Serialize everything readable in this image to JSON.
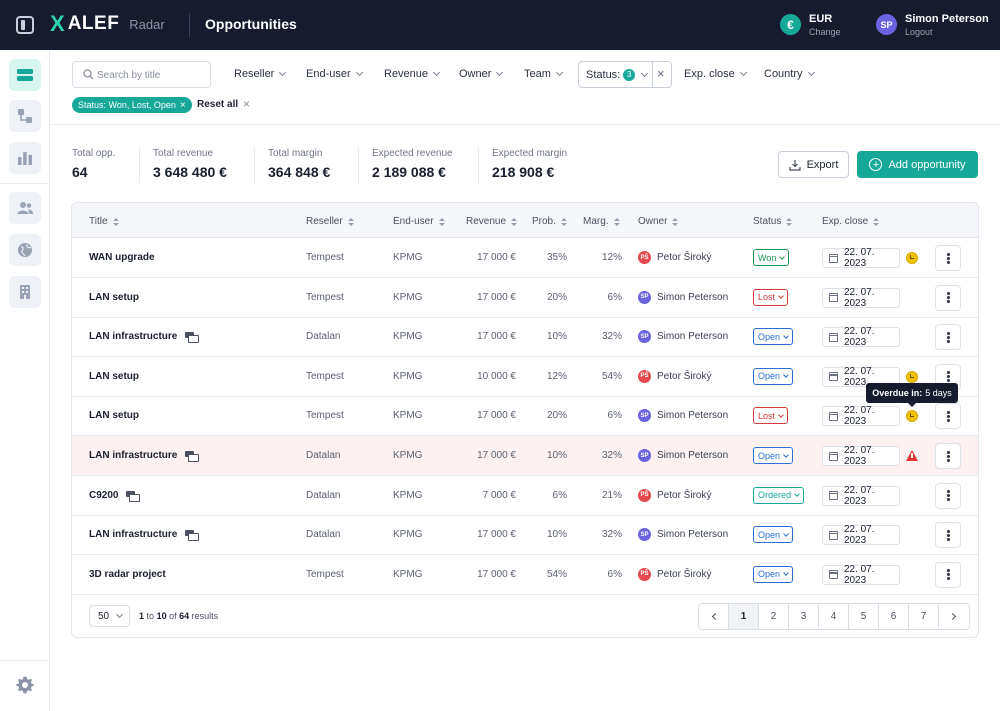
{
  "header": {
    "logo_mark": "X",
    "logo_text": "ALEF",
    "logo_sub": "Radar",
    "page_title": "Opportunities",
    "currency_symbol": "€",
    "currency_code": "EUR",
    "currency_change": "Change",
    "user_initials": "SP",
    "user_name": "Simon Peterson",
    "user_logout": "Logout"
  },
  "filters": {
    "search_placeholder": "Search by title",
    "reseller": "Reseller",
    "end_user": "End-user",
    "revenue": "Revenue",
    "owner": "Owner",
    "team": "Team",
    "status": "Status:",
    "status_count": "3",
    "status_clear": "×",
    "exp_close": "Exp. close",
    "country": "Country",
    "chip": "Status: Won, Lost, Open",
    "chip_x": "×",
    "reset_all": "Reset all",
    "reset_x": "×"
  },
  "stats": [
    {
      "label": "Total opp.",
      "value": "64"
    },
    {
      "label": "Total revenue",
      "value": "3 648 480 €"
    },
    {
      "label": "Total margin",
      "value": "364 848 €"
    },
    {
      "label": "Expected revenue",
      "value": "2 189 088 €"
    },
    {
      "label": "Expected margin",
      "value": "218 908 €"
    }
  ],
  "actions": {
    "export": "Export",
    "add_opportunity": "Add opportunity"
  },
  "table": {
    "headers": {
      "title": "Title",
      "reseller": "Reseller",
      "end_user": "End-user",
      "revenue": "Revenue",
      "prob": "Prob.",
      "marg": "Marg.",
      "owner": "Owner",
      "status": "Status",
      "exp_close": "Exp. close"
    },
    "rows": [
      {
        "title": "WAN upgrade",
        "group": false,
        "reseller": "Tempest",
        "end_user": "KPMG",
        "revenue": "17 000 €",
        "prob": "35%",
        "marg": "12%",
        "owner_initials": "PŠ",
        "owner": "Petor Široký",
        "status": "Won",
        "date": "22. 07. 2023",
        "warn": "clock"
      },
      {
        "title": "LAN setup",
        "group": false,
        "reseller": "Tempest",
        "end_user": "KPMG",
        "revenue": "17 000 €",
        "prob": "20%",
        "marg": "6%",
        "owner_initials": "SP",
        "owner": "Simon Peterson",
        "status": "Lost",
        "date": "22. 07. 2023",
        "warn": ""
      },
      {
        "title": "LAN infrastructure",
        "group": true,
        "reseller": "Datalan",
        "end_user": "KPMG",
        "revenue": "17 000 €",
        "prob": "10%",
        "marg": "32%",
        "owner_initials": "SP",
        "owner": "Simon Peterson",
        "status": "Open",
        "date": "22. 07. 2023",
        "warn": ""
      },
      {
        "title": "LAN setup",
        "group": false,
        "reseller": "Tempest",
        "end_user": "KPMG",
        "revenue": "10 000 €",
        "prob": "12%",
        "marg": "54%",
        "owner_initials": "PŠ",
        "owner": "Petor Široký",
        "status": "Open",
        "date": "22. 07. 2023",
        "warn": "clock"
      },
      {
        "title": "LAN setup",
        "group": false,
        "reseller": "Tempest",
        "end_user": "KPMG",
        "revenue": "17 000 €",
        "prob": "20%",
        "marg": "6%",
        "owner_initials": "SP",
        "owner": "Simon Peterson",
        "status": "Lost",
        "date": "22. 07. 2023",
        "warn": "clock"
      },
      {
        "title": "LAN infrastructure",
        "group": true,
        "reseller": "Datalan",
        "end_user": "KPMG",
        "revenue": "17 000 €",
        "prob": "10%",
        "marg": "32%",
        "owner_initials": "SP",
        "owner": "Simon Peterson",
        "status": "Open",
        "date": "22. 07. 2023",
        "warn": "triangle"
      },
      {
        "title": "C9200",
        "group": true,
        "reseller": "Datalan",
        "end_user": "KPMG",
        "revenue": "7 000 €",
        "prob": "6%",
        "marg": "21%",
        "owner_initials": "PŠ",
        "owner": "Petor Široký",
        "status": "Ordered",
        "date": "22. 07. 2023",
        "warn": ""
      },
      {
        "title": "LAN infrastructure",
        "group": true,
        "reseller": "Datalan",
        "end_user": "KPMG",
        "revenue": "17 000 €",
        "prob": "10%",
        "marg": "32%",
        "owner_initials": "SP",
        "owner": "Simon Peterson",
        "status": "Open",
        "date": "22. 07. 2023",
        "warn": ""
      },
      {
        "title": "3D radar project",
        "group": false,
        "reseller": "Tempest",
        "end_user": "KPMG",
        "revenue": "17 000 €",
        "prob": "54%",
        "marg": "6%",
        "owner_initials": "PŠ",
        "owner": "Petor Široký",
        "status": "Open",
        "date": "22. 07. 2023",
        "warn": ""
      }
    ]
  },
  "tooltip": {
    "label": "Overdue in:",
    "value": "5 days"
  },
  "pagination": {
    "per_page": "50",
    "range_from": "1",
    "range_to_word": "to",
    "range_to": "10",
    "of_word": "of",
    "total": "64",
    "results_word": "results",
    "pages": [
      "1",
      "2",
      "3",
      "4",
      "5",
      "6",
      "7"
    ],
    "active_page": "1"
  },
  "colors": {
    "accent": "#17a89a",
    "won": "#1a9a4a",
    "lost": "#d63a3a",
    "open": "#2a6fd6",
    "ordered": "#17a89a",
    "avatar_ps": "#e5484d",
    "avatar_sp": "#6c63e0"
  }
}
